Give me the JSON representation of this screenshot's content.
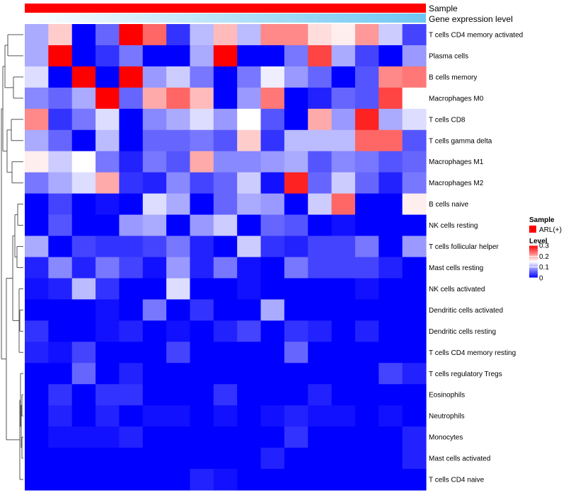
{
  "chart_data": {
    "type": "heatmap",
    "title": "",
    "annotations": [
      {
        "name": "Sample",
        "label": "Sample",
        "values": "ARL(+) for all columns"
      },
      {
        "name": "Gene expression level",
        "label": "Gene expression level",
        "values": "gradient white to sky blue across columns"
      }
    ],
    "rows": [
      "T cells CD4 memory activated",
      "Plasma cells",
      "B cells memory",
      "Macrophages M0",
      "T cells CD8",
      "T cells gamma delta",
      "Macrophages M1",
      "Macrophages M2",
      "B cells naive",
      "NK cells resting",
      "T cells follicular helper",
      "Mast cells resting",
      "NK cells activated",
      "Dendritic cells activated",
      "Dendritic cells resting",
      "T cells CD4 memory resting",
      "T cells regulatory  Tregs",
      "Eosinophils",
      "Neutrophils",
      "Monocytes",
      "Mast cells activated",
      "T cells CD4 naive"
    ],
    "n_columns": 17,
    "color_scale": {
      "min": 0,
      "max": 0.3,
      "low": "#0000ff",
      "mid": "#ffffff",
      "high": "#ff0000"
    },
    "values": [
      [
        0.1,
        0.18,
        0.0,
        0.06,
        0.3,
        0.24,
        0.03,
        0.11,
        0.19,
        0.11,
        0.22,
        0.22,
        0.17,
        0.16,
        0.21,
        0.12,
        0.04
      ],
      [
        0.1,
        0.3,
        0.0,
        0.03,
        0.07,
        0.0,
        0.0,
        0.1,
        0.3,
        0.0,
        0.0,
        0.07,
        0.26,
        0.1,
        0.04,
        0.0,
        0.09
      ],
      [
        0.13,
        0.0,
        0.3,
        0.0,
        0.3,
        0.09,
        0.12,
        0.07,
        0.0,
        0.07,
        0.14,
        0.09,
        0.06,
        0.0,
        0.05,
        0.22,
        0.23
      ],
      [
        0.08,
        0.06,
        0.1,
        0.3,
        0.06,
        0.2,
        0.24,
        0.19,
        0.0,
        0.09,
        0.23,
        0.0,
        0.02,
        0.06,
        0.05,
        0.26,
        0.15
      ],
      [
        0.22,
        0.03,
        0.07,
        0.13,
        0.0,
        0.08,
        0.1,
        0.13,
        0.09,
        0.15,
        0.05,
        0.0,
        0.2,
        0.09,
        0.28,
        0.1,
        0.13
      ],
      [
        0.1,
        0.06,
        0.0,
        0.11,
        0.0,
        0.06,
        0.06,
        0.07,
        0.05,
        0.18,
        0.03,
        0.11,
        0.11,
        0.11,
        0.24,
        0.24,
        0.05
      ],
      [
        0.16,
        0.12,
        0.15,
        0.07,
        0.02,
        0.07,
        0.05,
        0.2,
        0.08,
        0.08,
        0.09,
        0.1,
        0.05,
        0.08,
        0.07,
        0.05,
        0.06
      ],
      [
        0.07,
        0.1,
        0.13,
        0.2,
        0.03,
        0.02,
        0.08,
        0.04,
        0.06,
        0.12,
        0.01,
        0.28,
        0.06,
        0.12,
        0.06,
        0.02,
        0.07
      ],
      [
        0.0,
        0.04,
        0.0,
        0.01,
        0.0,
        0.13,
        0.1,
        0.0,
        0.06,
        0.1,
        0.09,
        0.0,
        0.12,
        0.24,
        0.0,
        0.0,
        0.16
      ],
      [
        0.0,
        0.05,
        0.0,
        0.0,
        0.09,
        0.1,
        0.0,
        0.09,
        0.12,
        0.0,
        0.06,
        0.05,
        0.0,
        0.01,
        0.0,
        0.0,
        0.0
      ],
      [
        0.1,
        0.0,
        0.04,
        0.03,
        0.03,
        0.04,
        0.07,
        0.02,
        0.0,
        0.12,
        0.03,
        0.02,
        0.04,
        0.04,
        0.07,
        0.0,
        0.09
      ],
      [
        0.02,
        0.08,
        0.02,
        0.07,
        0.04,
        0.01,
        0.09,
        0.02,
        0.07,
        0.01,
        0.0,
        0.07,
        0.04,
        0.04,
        0.04,
        0.02,
        0.0
      ],
      [
        0.01,
        0.02,
        0.11,
        0.03,
        0.0,
        0.0,
        0.13,
        0.0,
        0.0,
        0.01,
        0.0,
        0.0,
        0.0,
        0.0,
        0.01,
        0.0,
        0.0
      ],
      [
        0.0,
        0.0,
        0.0,
        0.01,
        0.0,
        0.07,
        0.0,
        0.03,
        0.0,
        0.0,
        0.1,
        0.0,
        0.0,
        0.0,
        0.0,
        0.0,
        0.0
      ],
      [
        0.03,
        0.0,
        0.0,
        0.01,
        0.02,
        0.0,
        0.01,
        0.0,
        0.02,
        0.04,
        0.0,
        0.03,
        0.02,
        0.0,
        0.02,
        0.0,
        0.0
      ],
      [
        0.02,
        0.01,
        0.04,
        0.0,
        0.0,
        0.0,
        0.04,
        0.0,
        0.0,
        0.0,
        0.0,
        0.06,
        0.0,
        0.0,
        0.0,
        0.0,
        0.0
      ],
      [
        0.0,
        0.0,
        0.06,
        0.0,
        0.02,
        0.0,
        0.0,
        0.0,
        0.0,
        0.0,
        0.0,
        0.0,
        0.0,
        0.0,
        0.0,
        0.04,
        0.02
      ],
      [
        0.0,
        0.03,
        0.0,
        0.03,
        0.03,
        0.0,
        0.0,
        0.0,
        0.03,
        0.0,
        0.0,
        0.0,
        0.02,
        0.0,
        0.0,
        0.0,
        0.0
      ],
      [
        0.0,
        0.02,
        0.0,
        0.02,
        0.0,
        0.01,
        0.01,
        0.0,
        0.01,
        0.0,
        0.01,
        0.02,
        0.01,
        0.01,
        0.0,
        0.01,
        0.0
      ],
      [
        0.0,
        0.01,
        0.01,
        0.01,
        0.02,
        0.0,
        0.0,
        0.0,
        0.0,
        0.0,
        0.0,
        0.03,
        0.0,
        0.0,
        0.0,
        0.0,
        0.02
      ],
      [
        0.0,
        0.0,
        0.0,
        0.0,
        0.0,
        0.0,
        0.0,
        0.0,
        0.0,
        0.0,
        0.02,
        0.0,
        0.0,
        0.0,
        0.0,
        0.0,
        0.02
      ],
      [
        0.0,
        0.0,
        0.0,
        0.0,
        0.0,
        0.0,
        0.0,
        0.02,
        0.01,
        0.0,
        0.0,
        0.0,
        0.0,
        0.0,
        0.0,
        0.0,
        0.0
      ]
    ],
    "legend": {
      "sample_title": "Sample",
      "sample_entry": "ARL(+)",
      "sample_color": "#ff0000",
      "level_title": "Level",
      "level_ticks": [
        {
          "value": 0.3,
          "label": "0.3"
        },
        {
          "value": 0.2,
          "label": "0.2"
        },
        {
          "value": 0.1,
          "label": "0.1"
        },
        {
          "value": 0.0,
          "label": "0"
        }
      ]
    },
    "expression_gradient": {
      "start": "#ffffff",
      "end": "#6ec6f2"
    },
    "dendrogram": "row clustering dendrogram on left"
  }
}
